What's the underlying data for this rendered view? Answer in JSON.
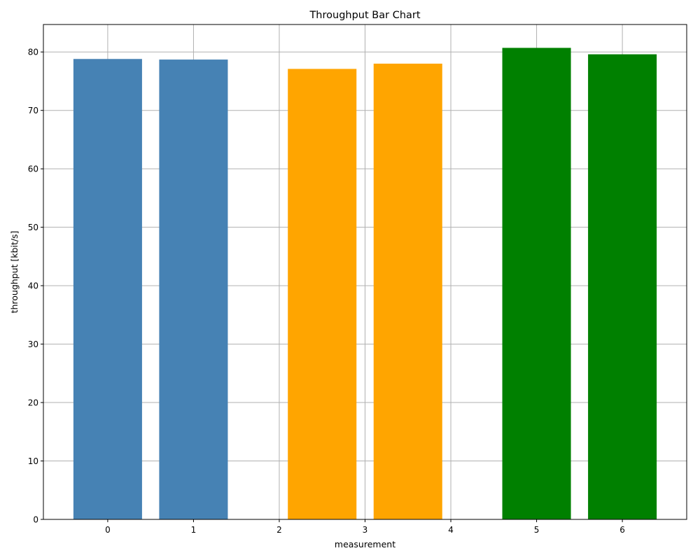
{
  "chart_data": {
    "type": "bar",
    "title": "Throughput Bar Chart",
    "xlabel": "measurement",
    "ylabel": "throughput [kbit/s]",
    "xlim": [
      -0.75,
      6.75
    ],
    "ylim": [
      0,
      84.7
    ],
    "xticks": [
      0,
      1,
      2,
      3,
      4,
      5,
      6
    ],
    "yticks": [
      0,
      10,
      20,
      30,
      40,
      50,
      60,
      70,
      80
    ],
    "grid": true,
    "bars": [
      {
        "x": 0.0,
        "width": 0.8,
        "value": 78.8,
        "color": "#4682b4"
      },
      {
        "x": 1.0,
        "width": 0.8,
        "value": 78.7,
        "color": "#4682b4"
      },
      {
        "x": 2.5,
        "width": 0.8,
        "value": 77.1,
        "color": "#ffa500"
      },
      {
        "x": 3.5,
        "width": 0.8,
        "value": 78.0,
        "color": "#ffa500"
      },
      {
        "x": 5.0,
        "width": 0.8,
        "value": 80.7,
        "color": "#008000"
      },
      {
        "x": 6.0,
        "width": 0.8,
        "value": 79.6,
        "color": "#008000"
      }
    ]
  }
}
